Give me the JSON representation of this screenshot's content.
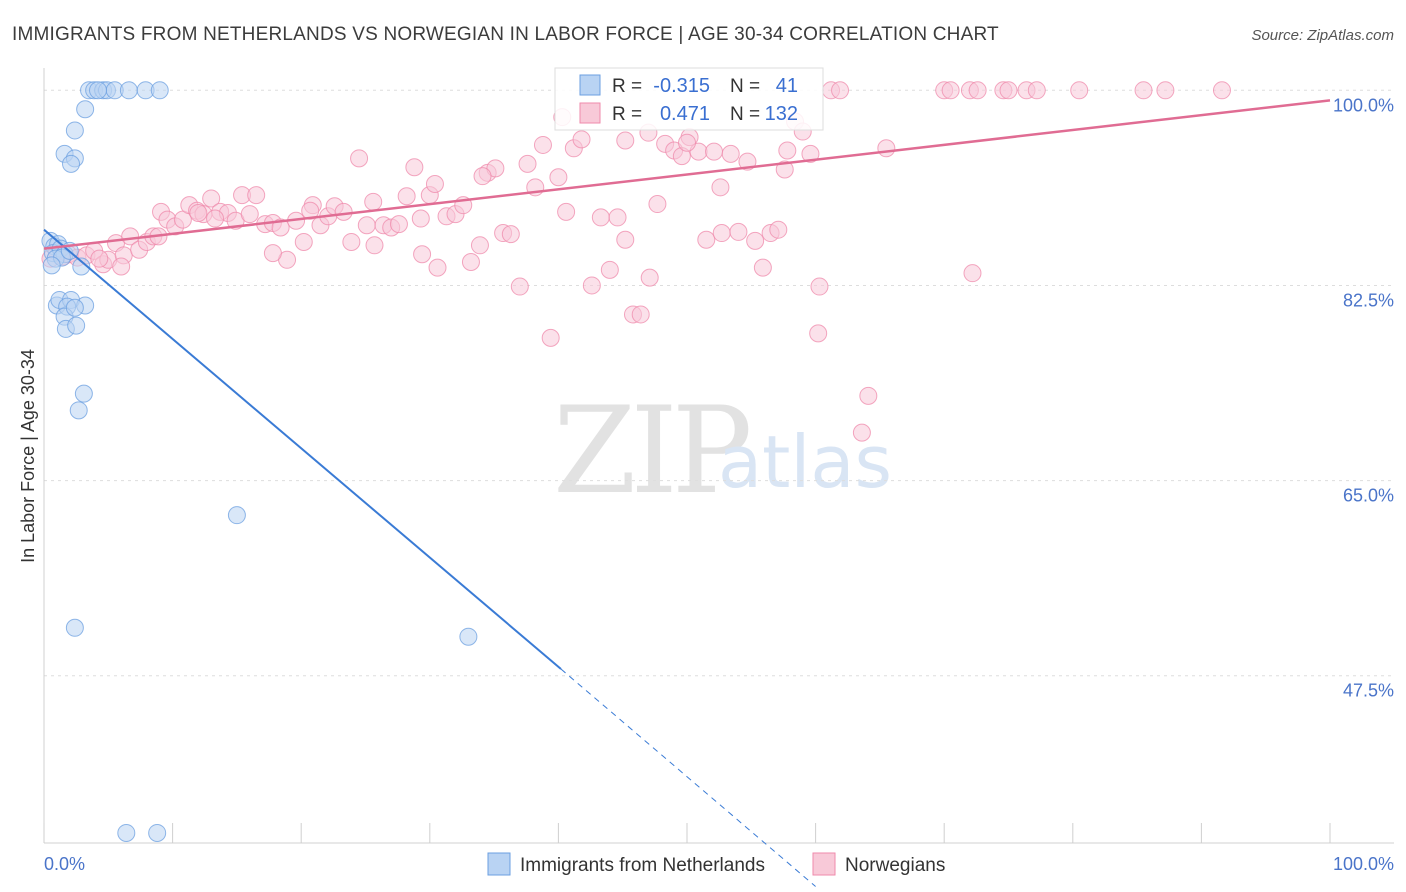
{
  "chart_data": {
    "type": "scatter",
    "title": "IMMIGRANTS FROM NETHERLANDS VS NORWEGIAN IN LABOR FORCE | AGE 30-34 CORRELATION CHART",
    "source": "Source: ZipAtlas.com",
    "xlabel": "",
    "ylabel": "In Labor Force | Age 30-34",
    "xlim": [
      0,
      100
    ],
    "ylim": [
      32.5,
      102
    ],
    "x_tick_labels": [
      {
        "value": 0,
        "label": "0.0%"
      },
      {
        "value": 100,
        "label": "100.0%"
      }
    ],
    "y_ticks": [
      {
        "value": 100.0,
        "label": "100.0%"
      },
      {
        "value": 82.5,
        "label": "82.5%"
      },
      {
        "value": 65.0,
        "label": "65.0%"
      },
      {
        "value": 47.5,
        "label": "47.5%"
      }
    ],
    "legend_position": "bottom-center",
    "watermark": {
      "zip": "ZIP",
      "atlas": "atlas"
    },
    "series": [
      {
        "name": "Immigrants from Netherlands",
        "color": "#6b9fe0",
        "fill": "#b9d3f3",
        "R": "-0.315",
        "N": "41",
        "trend": {
          "x0": 0,
          "y0": 87.5,
          "x1": 40.2,
          "y1": 48.1,
          "dash_x1": 60,
          "dash_y1": 28.6
        },
        "points": [
          [
            0.5,
            86.5
          ],
          [
            0.8,
            86.0
          ],
          [
            1.1,
            86.2
          ],
          [
            0.7,
            85.4
          ],
          [
            1.3,
            85.8
          ],
          [
            1.6,
            85.3
          ],
          [
            0.9,
            84.9
          ],
          [
            1.4,
            85.0
          ],
          [
            2.0,
            85.6
          ],
          [
            0.6,
            84.3
          ],
          [
            2.9,
            84.2
          ],
          [
            1.0,
            80.7
          ],
          [
            1.2,
            81.2
          ],
          [
            2.1,
            81.2
          ],
          [
            3.2,
            80.7
          ],
          [
            1.8,
            80.6
          ],
          [
            1.6,
            79.7
          ],
          [
            2.4,
            80.5
          ],
          [
            1.7,
            78.6
          ],
          [
            2.5,
            78.9
          ],
          [
            2.4,
            96.4
          ],
          [
            3.2,
            98.3
          ],
          [
            3.1,
            72.8
          ],
          [
            2.7,
            71.3
          ],
          [
            1.6,
            94.3
          ],
          [
            2.4,
            93.9
          ],
          [
            2.1,
            93.4
          ],
          [
            3.5,
            100.0
          ],
          [
            3.9,
            100.0
          ],
          [
            4.6,
            100.0
          ],
          [
            4.9,
            100.0
          ],
          [
            5.5,
            100.0
          ],
          [
            6.6,
            100.0
          ],
          [
            7.9,
            100.0
          ],
          [
            9.0,
            100.0
          ],
          [
            4.2,
            100.0
          ],
          [
            15.0,
            61.9
          ],
          [
            2.4,
            51.8
          ],
          [
            33.0,
            51.0
          ],
          [
            6.4,
            33.4
          ],
          [
            8.8,
            33.4
          ]
        ]
      },
      {
        "name": "Norwegians",
        "color": "#ef8aab",
        "fill": "#f8c9d8",
        "R": "0.471",
        "N": "132",
        "trend": {
          "x0": 0,
          "y0": 85.8,
          "x1": 100,
          "y1": 99.1
        },
        "points": [
          [
            0.5,
            84.9
          ],
          [
            1.0,
            85.5
          ],
          [
            1.5,
            85.1
          ],
          [
            1.9,
            85.3
          ],
          [
            2.6,
            85.0
          ],
          [
            3.3,
            85.2
          ],
          [
            3.9,
            85.6
          ],
          [
            4.6,
            84.4
          ],
          [
            5.0,
            84.8
          ],
          [
            5.6,
            86.3
          ],
          [
            6.2,
            85.2
          ],
          [
            6.7,
            86.9
          ],
          [
            7.4,
            85.7
          ],
          [
            8.0,
            86.4
          ],
          [
            8.5,
            86.9
          ],
          [
            9.1,
            89.1
          ],
          [
            9.6,
            88.4
          ],
          [
            10.2,
            87.8
          ],
          [
            10.8,
            88.4
          ],
          [
            11.3,
            89.7
          ],
          [
            11.9,
            89.2
          ],
          [
            12.4,
            88.9
          ],
          [
            13.0,
            90.3
          ],
          [
            13.7,
            89.1
          ],
          [
            14.3,
            89.0
          ],
          [
            14.9,
            88.3
          ],
          [
            15.4,
            90.6
          ],
          [
            16.0,
            88.9
          ],
          [
            16.5,
            90.6
          ],
          [
            17.2,
            88.0
          ],
          [
            17.8,
            88.1
          ],
          [
            18.4,
            87.7
          ],
          [
            18.9,
            84.8
          ],
          [
            19.6,
            88.3
          ],
          [
            20.2,
            86.4
          ],
          [
            20.9,
            89.7
          ],
          [
            21.5,
            87.9
          ],
          [
            22.1,
            88.7
          ],
          [
            22.6,
            89.6
          ],
          [
            23.3,
            89.1
          ],
          [
            23.9,
            86.4
          ],
          [
            24.5,
            93.9
          ],
          [
            25.1,
            87.9
          ],
          [
            25.7,
            86.1
          ],
          [
            26.4,
            87.9
          ],
          [
            27.0,
            87.7
          ],
          [
            27.6,
            88.0
          ],
          [
            28.2,
            90.5
          ],
          [
            28.8,
            93.1
          ],
          [
            29.4,
            85.3
          ],
          [
            30.0,
            90.6
          ],
          [
            30.6,
            84.1
          ],
          [
            31.3,
            88.7
          ],
          [
            32.0,
            88.9
          ],
          [
            32.6,
            89.7
          ],
          [
            33.2,
            84.6
          ],
          [
            33.9,
            86.1
          ],
          [
            34.5,
            92.6
          ],
          [
            35.1,
            93.0
          ],
          [
            35.7,
            87.2
          ],
          [
            36.3,
            87.1
          ],
          [
            37.0,
            82.4
          ],
          [
            37.6,
            93.4
          ],
          [
            38.2,
            91.3
          ],
          [
            38.8,
            95.1
          ],
          [
            39.4,
            77.8
          ],
          [
            40.0,
            92.2
          ],
          [
            40.6,
            89.1
          ],
          [
            41.2,
            94.8
          ],
          [
            41.8,
            95.6
          ],
          [
            42.6,
            82.5
          ],
          [
            43.3,
            88.6
          ],
          [
            44.0,
            83.9
          ],
          [
            44.6,
            88.6
          ],
          [
            45.2,
            86.6
          ],
          [
            45.8,
            79.9
          ],
          [
            46.4,
            79.9
          ],
          [
            47.1,
            83.2
          ],
          [
            47.7,
            89.8
          ],
          [
            48.3,
            95.2
          ],
          [
            49.0,
            94.6
          ],
          [
            49.6,
            94.1
          ],
          [
            50.2,
            95.8
          ],
          [
            50.9,
            94.5
          ],
          [
            51.5,
            86.6
          ],
          [
            52.1,
            94.5
          ],
          [
            52.7,
            87.2
          ],
          [
            53.4,
            94.3
          ],
          [
            54.0,
            87.3
          ],
          [
            54.7,
            93.6
          ],
          [
            55.3,
            86.5
          ],
          [
            55.9,
            84.1
          ],
          [
            56.5,
            87.2
          ],
          [
            57.1,
            87.5
          ],
          [
            57.8,
            94.6
          ],
          [
            58.4,
            97.2
          ],
          [
            59.0,
            96.3
          ],
          [
            59.6,
            94.3
          ],
          [
            60.3,
            82.4
          ],
          [
            61.2,
            100.0
          ],
          [
            61.9,
            100.0
          ],
          [
            70.0,
            100.0
          ],
          [
            70.5,
            100.0
          ],
          [
            72.0,
            100.0
          ],
          [
            72.6,
            100.0
          ],
          [
            74.6,
            100.0
          ],
          [
            75.0,
            100.0
          ],
          [
            76.4,
            100.0
          ],
          [
            77.2,
            100.0
          ],
          [
            80.5,
            100.0
          ],
          [
            85.5,
            100.0
          ],
          [
            87.2,
            100.0
          ],
          [
            91.6,
            100.0
          ],
          [
            72.2,
            83.6
          ],
          [
            60.2,
            78.2
          ],
          [
            64.1,
            72.6
          ],
          [
            63.6,
            69.3
          ],
          [
            65.5,
            94.8
          ],
          [
            57.6,
            92.9
          ],
          [
            52.6,
            91.3
          ],
          [
            47.0,
            96.2
          ],
          [
            50.0,
            95.3
          ],
          [
            45.2,
            95.5
          ],
          [
            40.3,
            97.6
          ],
          [
            34.1,
            92.3
          ],
          [
            30.4,
            91.6
          ],
          [
            29.3,
            88.5
          ],
          [
            25.6,
            90.0
          ],
          [
            20.7,
            89.2
          ],
          [
            17.8,
            85.4
          ],
          [
            13.3,
            88.5
          ],
          [
            12.0,
            89.0
          ],
          [
            8.9,
            86.9
          ],
          [
            6.0,
            84.2
          ],
          [
            4.3,
            84.9
          ]
        ]
      }
    ]
  }
}
